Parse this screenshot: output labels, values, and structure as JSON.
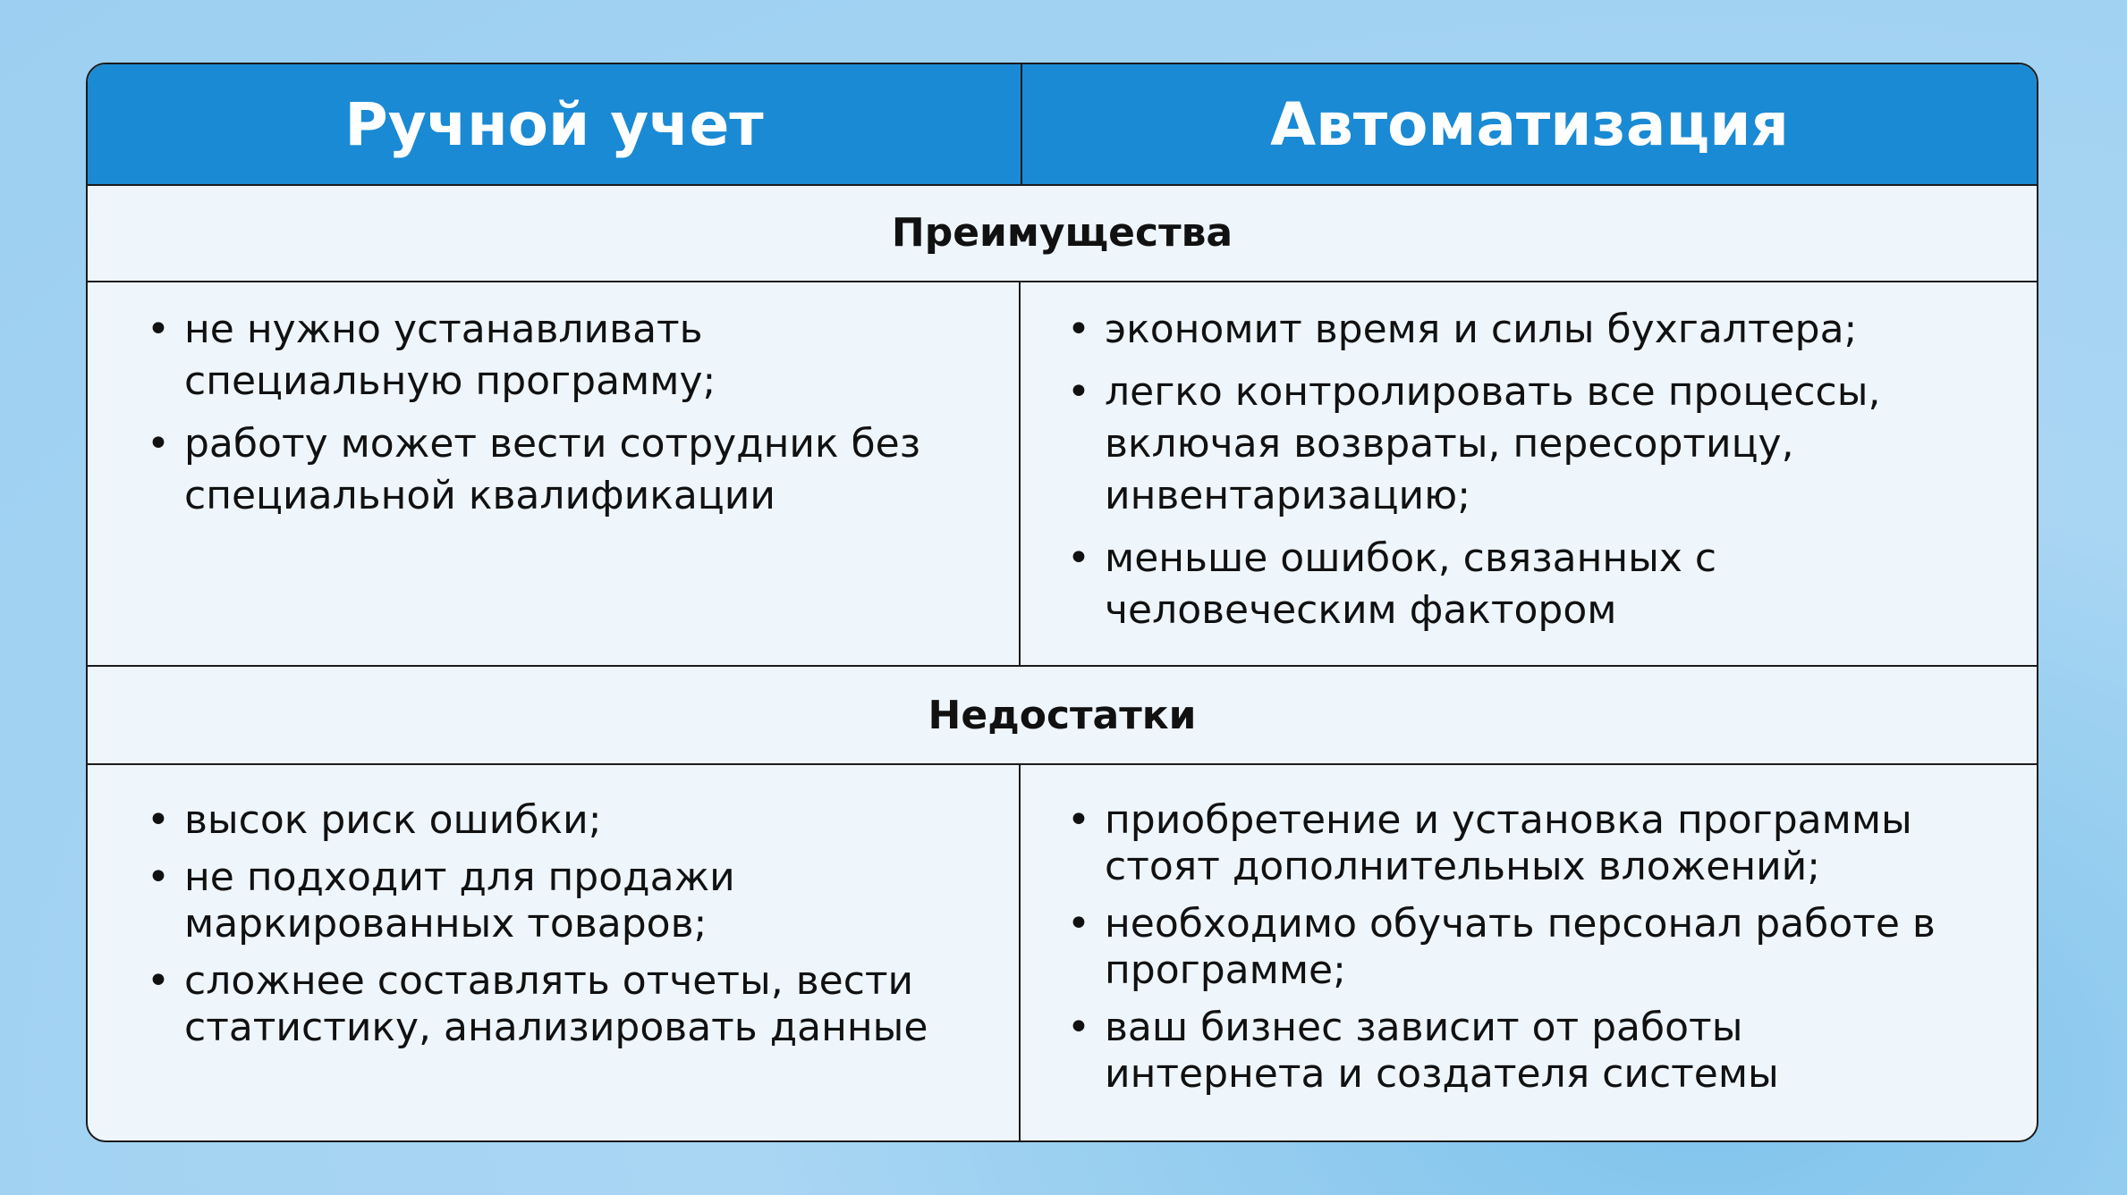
{
  "header": {
    "left": "Ручной учет",
    "right": "Автоматизация"
  },
  "sections": [
    {
      "title": "Преимущества",
      "left": [
        "не нужно устанавливать специальную программу;",
        "работу может вести сотрудник без специальной квалификации"
      ],
      "right": [
        "экономит время и силы бухгалтера;",
        "легко контролировать все процессы, включая возвраты, пересортицу, инвентаризацию;",
        "меньше ошибок, связанных с человеческим фактором"
      ]
    },
    {
      "title": "Недостатки",
      "left": [
        "высок риск ошибки;",
        "не подходит для продажи маркированных товаров;",
        "сложнее составлять отчеты, вести статистику, анализировать данные"
      ],
      "right": [
        "приобретение и установка программы стоят дополнительных вложений;",
        "необходимо обучать персонал работе в программе;",
        "ваш бизнес зависит от работы интернета и создателя системы"
      ]
    }
  ],
  "colors": {
    "header_bg": "#1a8ad4",
    "cell_bg": "#eef5fb",
    "page_bg": "#9ccff1"
  }
}
